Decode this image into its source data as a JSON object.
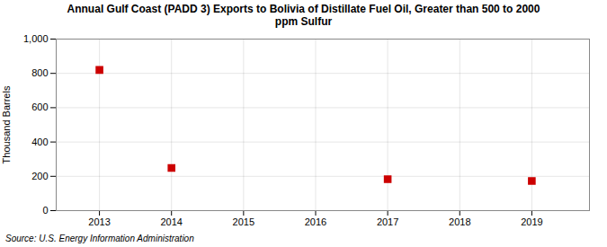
{
  "chart_data": {
    "type": "scatter",
    "title": "Annual Gulf Coast (PADD 3) Exports to Bolivia of Distillate Fuel Oil, Greater than 500 to 2000\nppm Sulfur",
    "ylabel": "Thousand Barrels",
    "source": "Source: U.S. Energy Information Administration",
    "x": [
      2013,
      2014,
      2017,
      2019
    ],
    "values": [
      820,
      249,
      183,
      173
    ],
    "color": "#cc0000",
    "marker": "square",
    "xlim": [
      2012.4,
      2019.8
    ],
    "xticks": [
      2013,
      2014,
      2015,
      2016,
      2017,
      2018,
      2019
    ],
    "ylim": [
      0,
      1000
    ],
    "yticks": [
      0,
      200,
      400,
      600,
      800,
      {
        "value": 1000,
        "label": "1,000"
      }
    ],
    "grid": true
  }
}
